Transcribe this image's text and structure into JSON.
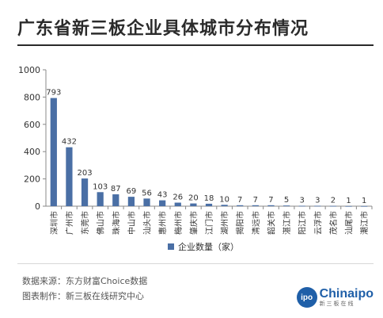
{
  "title": "广东省新三板企业具体城市分布情况",
  "footer": {
    "source": "数据来源：东方财富Choice数据",
    "made_by": "图表制作：新三板在线研究中心"
  },
  "logo": {
    "mark": "ipo",
    "name": "Chinaipo",
    "subtitle": "新三板在线"
  },
  "colors": {
    "bar": "#4a6fa5",
    "axis": "#888888",
    "grid": "#dddddd"
  },
  "chart_data": {
    "type": "bar",
    "categories": [
      "深圳市",
      "广州市",
      "东莞市",
      "佛山市",
      "珠海市",
      "中山市",
      "汕头市",
      "惠州市",
      "梅州市",
      "肇庆市",
      "江门市",
      "湖州市",
      "揭阳市",
      "清远市",
      "韶关市",
      "湛江市",
      "阳江市",
      "云浮市",
      "茂名市",
      "汕尾市",
      "潮江市"
    ],
    "series": [
      {
        "name": "企业数量（家）",
        "values": [
          793,
          432,
          203,
          103,
          87,
          69,
          56,
          43,
          26,
          20,
          18,
          10,
          7,
          7,
          7,
          5,
          3,
          3,
          2,
          1,
          1
        ]
      }
    ],
    "ylim": [
      0,
      1000
    ],
    "yticks": [
      0,
      200,
      400,
      600,
      800,
      1000
    ],
    "legend_position": "bottom-center",
    "grid": false
  }
}
